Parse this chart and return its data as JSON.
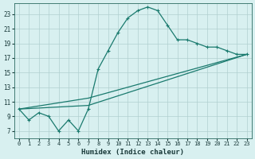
{
  "xlabel": "Humidex (Indice chaleur)",
  "bg_color": "#d8f0f0",
  "grid_color": "#b0d0d0",
  "line_color": "#1a7a6e",
  "xlim": [
    -0.5,
    23.5
  ],
  "ylim": [
    6.0,
    24.5
  ],
  "xticks": [
    0,
    1,
    2,
    3,
    4,
    5,
    6,
    7,
    8,
    9,
    10,
    11,
    12,
    13,
    14,
    15,
    16,
    17,
    18,
    19,
    20,
    21,
    22,
    23
  ],
  "yticks": [
    7,
    9,
    11,
    13,
    15,
    17,
    19,
    21,
    23
  ],
  "line1_x": [
    0,
    1,
    2,
    3,
    4,
    5,
    6,
    7,
    8,
    9,
    10,
    11,
    12,
    13,
    14,
    15,
    16,
    17,
    18,
    19,
    20,
    21,
    22,
    23
  ],
  "line1_y": [
    10.0,
    8.5,
    9.5,
    9.0,
    7.0,
    8.5,
    7.0,
    10.0,
    15.5,
    18.0,
    20.5,
    22.5,
    23.5,
    24.0,
    23.5,
    21.5,
    19.5,
    19.5,
    19.0,
    18.5,
    18.5,
    18.0,
    17.5,
    17.5
  ],
  "line2_x": [
    0,
    7,
    23
  ],
  "line2_y": [
    10.0,
    11.5,
    17.5
  ],
  "line3_x": [
    0,
    7,
    23
  ],
  "line3_y": [
    10.0,
    10.5,
    17.5
  ]
}
